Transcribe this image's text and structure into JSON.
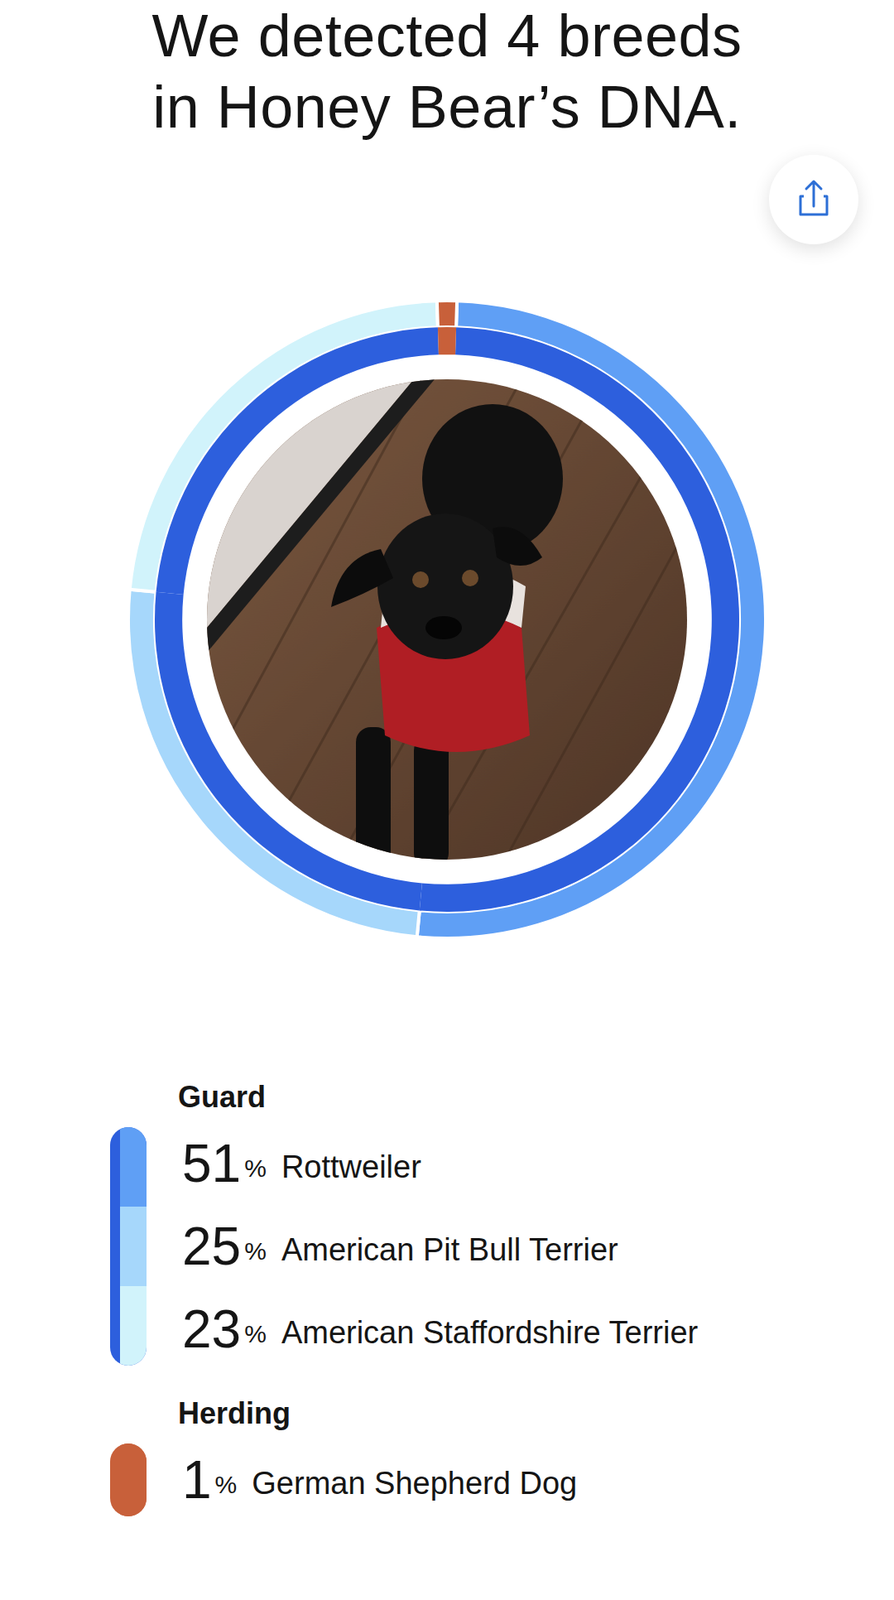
{
  "title": "We detected 4 breeds\nin Honey Bear’s DNA.",
  "chart_data": {
    "type": "pie",
    "categories": [
      "Rottweiler",
      "American Pit Bull Terrier",
      "American Staffordshire Terrier",
      "German Shepherd Dog"
    ],
    "values": [
      51,
      25,
      23,
      1
    ],
    "value_labels": [
      "51%",
      "25%",
      "23%",
      "1%"
    ],
    "colors": [
      "#5f9ff5",
      "#a6d7fb",
      "#d1f3fb",
      "#c8603a"
    ],
    "groups": [
      {
        "name": "Guard",
        "color": "#2d5fdd",
        "categories": [
          "Rottweiler",
          "American Pit Bull Terrier",
          "American Staffordshire Terrier"
        ]
      },
      {
        "name": "Herding",
        "color": "#c8603a",
        "categories": [
          "German Shepherd Dog"
        ]
      }
    ]
  }
}
